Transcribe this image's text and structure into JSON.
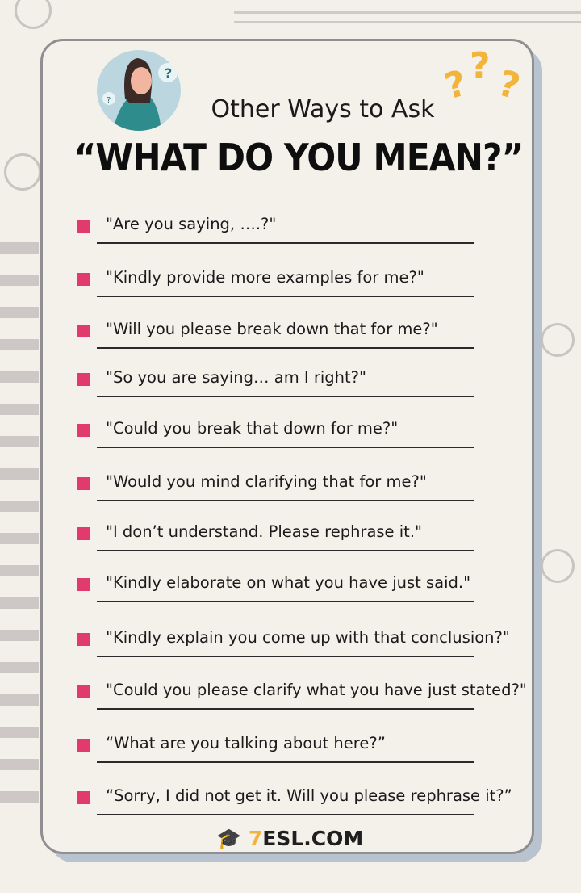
{
  "header": {
    "subtitle": "Other Ways to Ask",
    "title": "“WHAT DO YOU MEAN?”"
  },
  "items": [
    "\"Are you saying, ….?\"",
    "\"Kindly provide more examples for me?\"",
    "\"Will you please break down that for me?\"",
    "\"So you are saying… am I right?\"",
    "\"Could you break that down for me?\"",
    "\"Would you mind clarifying that for me?\"",
    "\"I don’t understand. Please rephrase it.\"",
    "\"Kindly elaborate on what you have just said.\"",
    "\"Kindly explain you come up with that conclusion?\"",
    "\"Could you please clarify what you have just stated?\"",
    "“What are you talking about here?”",
    "“Sorry, I did not get it. Will you please rephrase it?”"
  ],
  "logo": {
    "text": "ESL.COM",
    "prefix": "7"
  },
  "colors": {
    "bullet": "#e03b6c",
    "accent": "#f2b43b"
  }
}
